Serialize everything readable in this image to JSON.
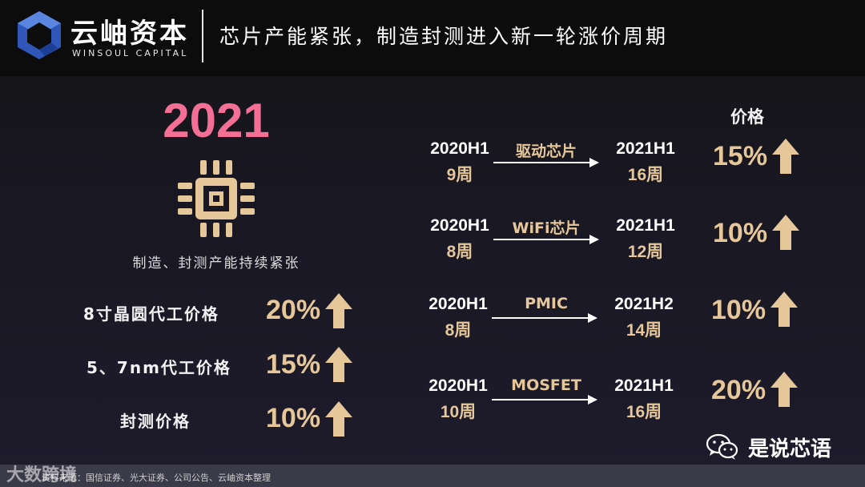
{
  "header": {
    "brand_cn": "云岫资本",
    "brand_en": "WINSOUL CAPITAL",
    "title": "芯片产能紧张，制造封测进入新一轮涨价周期"
  },
  "left_panel": {
    "year": "2021",
    "caption": "制造、封测产能持续紧张",
    "items": [
      {
        "label": "8寸晶圆代工价格",
        "value": "20%"
      },
      {
        "label": "5、7nm代工价格",
        "value": "15%"
      },
      {
        "label": "封测价格",
        "value": "10%"
      }
    ]
  },
  "right_panel": {
    "price_header": "价格",
    "rows": [
      {
        "from_period": "2020H1",
        "from_weeks": "9周",
        "product": "驱动芯片",
        "to_period": "2021H1",
        "to_weeks": "16周",
        "price_change": "15%"
      },
      {
        "from_period": "2020H1",
        "from_weeks": "8周",
        "product": "WiFi芯片",
        "to_period": "2021H1",
        "to_weeks": "12周",
        "price_change": "10%"
      },
      {
        "from_period": "2020H1",
        "from_weeks": "8周",
        "product": "PMIC",
        "to_period": "2021H2",
        "to_weeks": "14周",
        "price_change": "10%"
      },
      {
        "from_period": "2020H1",
        "from_weeks": "10周",
        "product": "MOSFET",
        "to_period": "2021H1",
        "to_weeks": "16周",
        "price_change": "20%"
      }
    ]
  },
  "footer": {
    "source": "资料来源：国信证券、光大证券、公司公告、云岫资本整理",
    "watermark": "大数跨境",
    "wechat_account": "是说芯语"
  },
  "colors": {
    "accent_pink": "#f36f96",
    "accent_gold": "#e6c79a",
    "logo_blue": "#3b64c8"
  },
  "icons": [
    "winsoul-logo-icon",
    "chip-icon",
    "arrow-up-icon",
    "arrow-right-icon",
    "wechat-icon"
  ]
}
